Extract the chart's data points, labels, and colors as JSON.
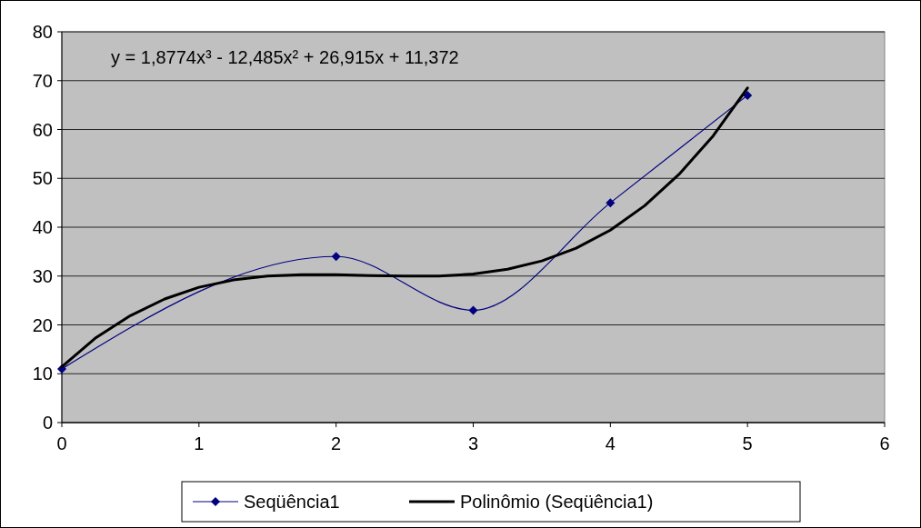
{
  "chart_data": {
    "type": "line",
    "series": [
      {
        "name": "Seqüência1",
        "color": "#000080",
        "values": [
          11,
          34,
          23,
          45,
          67
        ],
        "x": [
          0,
          2,
          3,
          4,
          5
        ]
      },
      {
        "name": "Polinômio (Seqüência1)",
        "color": "#000000",
        "marker": "none",
        "x": [
          0,
          0.25,
          0.5,
          0.75,
          1,
          1.25,
          1.5,
          1.75,
          2,
          2.25,
          2.5,
          2.75,
          3,
          3.25,
          3.5,
          3.75,
          4,
          4.25,
          4.5,
          4.75,
          5
        ],
        "values": [
          11.4,
          17.4,
          21.9,
          25.3,
          27.7,
          29.2,
          30,
          30.3,
          30.3,
          30.1,
          30,
          30,
          30.4,
          31.4,
          33.1,
          35.7,
          39.4,
          44.4,
          50.8,
          58.7,
          68.5
        ]
      }
    ],
    "xlim": [
      0,
      6
    ],
    "xticks": [
      0,
      1,
      2,
      3,
      4,
      5,
      6
    ],
    "ylim": [
      0,
      80
    ],
    "yticks": [
      0,
      10,
      20,
      30,
      40,
      50,
      60,
      70,
      80
    ],
    "grid": "y",
    "legend": "bottom",
    "marker": "diamond",
    "annotations": [
      "y = 1,8774x³ - 12,485x² + 26,915x + 11,372"
    ]
  }
}
